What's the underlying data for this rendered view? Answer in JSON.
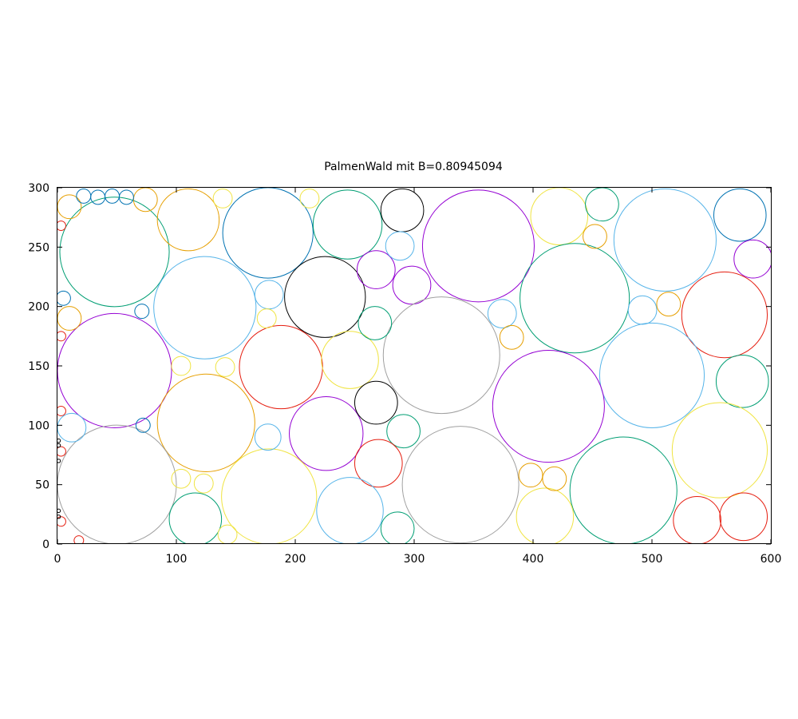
{
  "chart_data": {
    "type": "scatter",
    "title": "PalmenWald mit B=0.80945094",
    "xlabel": "",
    "ylabel": "",
    "xlim": [
      0,
      600
    ],
    "ylim": [
      0,
      300
    ],
    "x_ticks": [
      "0",
      "100",
      "200",
      "300",
      "400",
      "500",
      "600"
    ],
    "y_ticks": [
      "0",
      "50",
      "100",
      "150",
      "200",
      "250",
      "300"
    ],
    "grid": false,
    "legend": false,
    "circles": [
      {
        "x": 48,
        "y": 246,
        "r": 46,
        "color": "#009e73"
      },
      {
        "x": 110,
        "y": 273,
        "r": 26,
        "color": "#e69f00"
      },
      {
        "x": 177,
        "y": 262,
        "r": 38,
        "color": "#0072b2"
      },
      {
        "x": 244,
        "y": 269,
        "r": 29,
        "color": "#009e73"
      },
      {
        "x": 290,
        "y": 281,
        "r": 18,
        "color": "#000000"
      },
      {
        "x": 354,
        "y": 251,
        "r": 47,
        "color": "#9400d3"
      },
      {
        "x": 422,
        "y": 276,
        "r": 24,
        "color": "#f0e442"
      },
      {
        "x": 458,
        "y": 286,
        "r": 14,
        "color": "#009e73"
      },
      {
        "x": 511,
        "y": 256,
        "r": 43,
        "color": "#56b4e9"
      },
      {
        "x": 574,
        "y": 277,
        "r": 22,
        "color": "#0072b2"
      },
      {
        "x": 585,
        "y": 240,
        "r": 16,
        "color": "#9400d3"
      },
      {
        "x": 124,
        "y": 199,
        "r": 43,
        "color": "#56b4e9"
      },
      {
        "x": 225,
        "y": 208,
        "r": 34,
        "color": "#000000"
      },
      {
        "x": 268,
        "y": 231,
        "r": 16,
        "color": "#9400d3"
      },
      {
        "x": 298,
        "y": 218,
        "r": 16,
        "color": "#9400d3"
      },
      {
        "x": 288,
        "y": 251,
        "r": 12,
        "color": "#56b4e9"
      },
      {
        "x": 435,
        "y": 207,
        "r": 46,
        "color": "#009e73"
      },
      {
        "x": 561,
        "y": 193,
        "r": 36,
        "color": "#e51e10"
      },
      {
        "x": 48,
        "y": 146,
        "r": 48,
        "color": "#9400d3"
      },
      {
        "x": 188,
        "y": 149,
        "r": 35,
        "color": "#e51e10"
      },
      {
        "x": 246,
        "y": 155,
        "r": 24,
        "color": "#f0e442"
      },
      {
        "x": 323,
        "y": 159,
        "r": 49,
        "color": "#a0a0a0"
      },
      {
        "x": 500,
        "y": 142,
        "r": 44,
        "color": "#56b4e9"
      },
      {
        "x": 576,
        "y": 137,
        "r": 22,
        "color": "#009e73"
      },
      {
        "x": 413,
        "y": 116,
        "r": 47,
        "color": "#9400d3"
      },
      {
        "x": 125,
        "y": 102,
        "r": 41,
        "color": "#e69f00"
      },
      {
        "x": 226,
        "y": 93,
        "r": 31,
        "color": "#9400d3"
      },
      {
        "x": 268,
        "y": 119,
        "r": 18,
        "color": "#000000"
      },
      {
        "x": 291,
        "y": 95,
        "r": 14,
        "color": "#009e73"
      },
      {
        "x": 557,
        "y": 79,
        "r": 40,
        "color": "#f0e442"
      },
      {
        "x": 50,
        "y": 50,
        "r": 50,
        "color": "#a0a0a0"
      },
      {
        "x": 178,
        "y": 40,
        "r": 40,
        "color": "#f0e442"
      },
      {
        "x": 270,
        "y": 68,
        "r": 20,
        "color": "#e51e10"
      },
      {
        "x": 339,
        "y": 50,
        "r": 49,
        "color": "#a0a0a0"
      },
      {
        "x": 476,
        "y": 45,
        "r": 45,
        "color": "#009e73"
      },
      {
        "x": 116,
        "y": 21,
        "r": 22,
        "color": "#009e73"
      },
      {
        "x": 246,
        "y": 28,
        "r": 28,
        "color": "#56b4e9"
      },
      {
        "x": 286,
        "y": 13,
        "r": 14,
        "color": "#009e73"
      },
      {
        "x": 410,
        "y": 23,
        "r": 24,
        "color": "#f0e442"
      },
      {
        "x": 538,
        "y": 20,
        "r": 20,
        "color": "#e51e10"
      },
      {
        "x": 577,
        "y": 23,
        "r": 20,
        "color": "#e51e10"
      },
      {
        "x": 398,
        "y": 58,
        "r": 10,
        "color": "#e69f00"
      },
      {
        "x": 418,
        "y": 55,
        "r": 10,
        "color": "#e69f00"
      },
      {
        "x": 374,
        "y": 194,
        "r": 12,
        "color": "#56b4e9"
      },
      {
        "x": 382,
        "y": 174,
        "r": 10,
        "color": "#e69f00"
      },
      {
        "x": 452,
        "y": 259,
        "r": 10,
        "color": "#e69f00"
      },
      {
        "x": 492,
        "y": 197,
        "r": 12,
        "color": "#56b4e9"
      },
      {
        "x": 514,
        "y": 202,
        "r": 10,
        "color": "#e69f00"
      },
      {
        "x": 267,
        "y": 186,
        "r": 14,
        "color": "#009e73"
      },
      {
        "x": 178,
        "y": 210,
        "r": 12,
        "color": "#56b4e9"
      },
      {
        "x": 176,
        "y": 190,
        "r": 8,
        "color": "#f0e442"
      },
      {
        "x": 177,
        "y": 90,
        "r": 11,
        "color": "#56b4e9"
      },
      {
        "x": 212,
        "y": 291,
        "r": 8,
        "color": "#f0e442"
      },
      {
        "x": 139,
        "y": 291,
        "r": 8,
        "color": "#f0e442"
      },
      {
        "x": 74,
        "y": 290,
        "r": 10,
        "color": "#e69f00"
      },
      {
        "x": 10,
        "y": 284,
        "r": 10,
        "color": "#e69f00"
      },
      {
        "x": 10,
        "y": 190,
        "r": 10,
        "color": "#e69f00"
      },
      {
        "x": 12,
        "y": 98,
        "r": 12,
        "color": "#56b4e9"
      },
      {
        "x": 104,
        "y": 55,
        "r": 8,
        "color": "#f0e442"
      },
      {
        "x": 123,
        "y": 51,
        "r": 8,
        "color": "#f0e442"
      },
      {
        "x": 104,
        "y": 150,
        "r": 8,
        "color": "#f0e442"
      },
      {
        "x": 141,
        "y": 149,
        "r": 8,
        "color": "#f0e442"
      },
      {
        "x": 143,
        "y": 8,
        "r": 8,
        "color": "#f0e442"
      },
      {
        "x": 72,
        "y": 100,
        "r": 6,
        "color": "#0072b2"
      },
      {
        "x": 71,
        "y": 196,
        "r": 6,
        "color": "#0072b2"
      },
      {
        "x": 5,
        "y": 207,
        "r": 6,
        "color": "#0072b2"
      },
      {
        "x": 22,
        "y": 293,
        "r": 6,
        "color": "#0072b2"
      },
      {
        "x": 34,
        "y": 292,
        "r": 6,
        "color": "#0072b2"
      },
      {
        "x": 46,
        "y": 293,
        "r": 6,
        "color": "#0072b2"
      },
      {
        "x": 58,
        "y": 292,
        "r": 6,
        "color": "#0072b2"
      },
      {
        "x": 3,
        "y": 268,
        "r": 4,
        "color": "#e51e10"
      },
      {
        "x": 3,
        "y": 175,
        "r": 4,
        "color": "#e51e10"
      },
      {
        "x": 3,
        "y": 112,
        "r": 4,
        "color": "#e51e10"
      },
      {
        "x": 3,
        "y": 78,
        "r": 4,
        "color": "#e51e10"
      },
      {
        "x": 3,
        "y": 19,
        "r": 4,
        "color": "#e51e10"
      },
      {
        "x": 18,
        "y": 3,
        "r": 4,
        "color": "#e51e10"
      },
      {
        "x": 1,
        "y": 87,
        "r": 1.5,
        "color": "#000000"
      },
      {
        "x": 1,
        "y": 83,
        "r": 1.5,
        "color": "#000000"
      },
      {
        "x": 1,
        "y": 70,
        "r": 1.5,
        "color": "#000000"
      },
      {
        "x": 1,
        "y": 28,
        "r": 1.5,
        "color": "#000000"
      },
      {
        "x": 1,
        "y": 23,
        "r": 1.5,
        "color": "#000000"
      }
    ]
  }
}
